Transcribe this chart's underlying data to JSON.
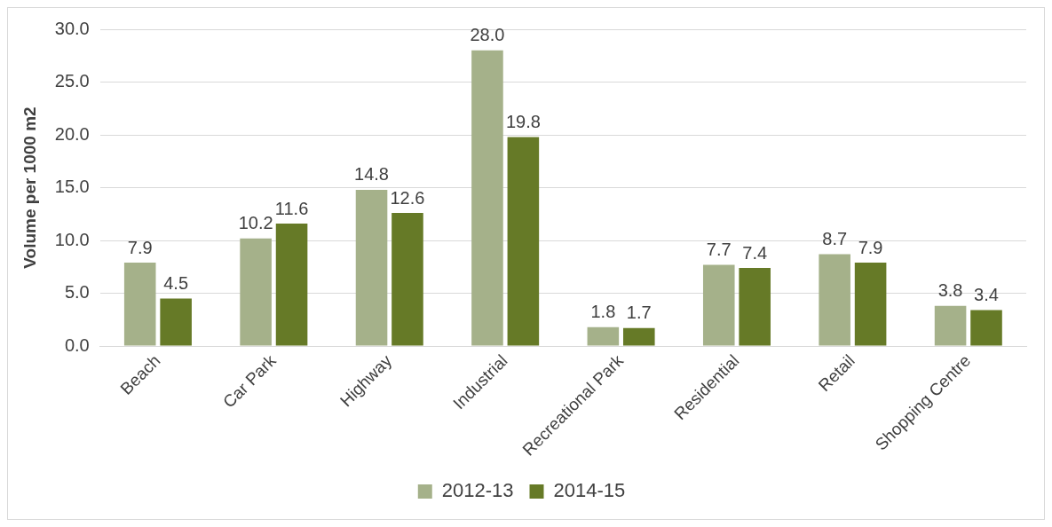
{
  "chart_data": {
    "type": "bar",
    "ylabel": "Volume per 1000 m2",
    "categories": [
      "Beach",
      "Car Park",
      "Highway",
      "Industrial",
      "Recreational Park",
      "Residential",
      "Retail",
      "Shopping Centre"
    ],
    "series": [
      {
        "name": "2012-13",
        "color": "#a5b18a",
        "values": [
          7.9,
          10.2,
          14.8,
          28.0,
          1.8,
          7.7,
          8.7,
          3.8
        ],
        "value_labels": [
          "7.9",
          "10.2",
          "14.8",
          "28.0",
          "1.8",
          "7.7",
          "8.7",
          "3.8"
        ]
      },
      {
        "name": "2014-15",
        "color": "#667a27",
        "values": [
          4.5,
          11.6,
          12.6,
          19.8,
          1.7,
          7.4,
          7.9,
          3.4
        ],
        "value_labels": [
          "4.5",
          "11.6",
          "12.6",
          "19.8",
          "1.7",
          "7.4",
          "7.9",
          "3.4"
        ]
      }
    ],
    "ylim": [
      0,
      30
    ],
    "yticks": [
      {
        "value": 0,
        "label": "0.0"
      },
      {
        "value": 5,
        "label": "5.0"
      },
      {
        "value": 10,
        "label": "10.0"
      },
      {
        "value": 15,
        "label": "15.0"
      },
      {
        "value": 20,
        "label": "20.0"
      },
      {
        "value": 25,
        "label": "25.0"
      },
      {
        "value": 30,
        "label": "30.0"
      }
    ],
    "grid": "y",
    "legend": "bottom"
  }
}
